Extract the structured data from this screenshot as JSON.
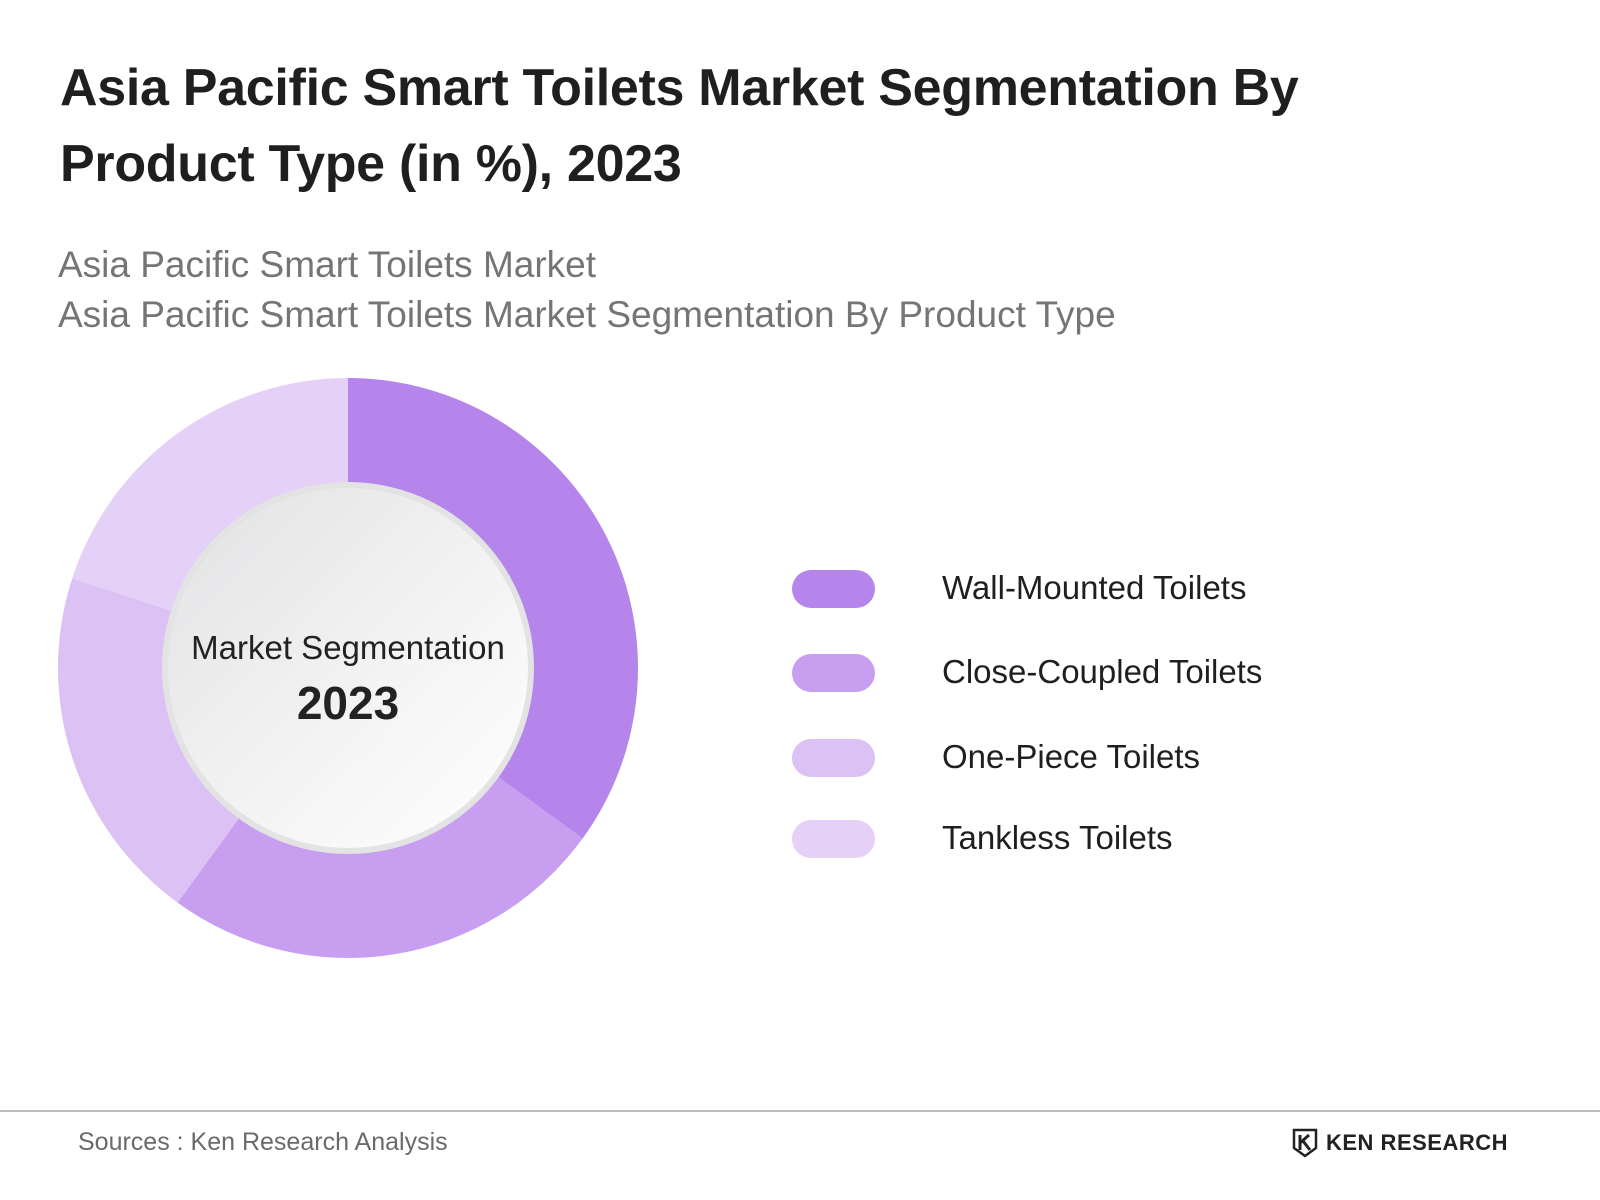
{
  "header": {
    "title": "Asia Pacific Smart Toilets Market Segmentation By Product Type (in %), 2023",
    "subtitle_1": "Asia Pacific Smart Toilets Market",
    "subtitle_2": "Asia Pacific Smart Toilets Market Segmentation By Product Type"
  },
  "center": {
    "label": "Market Segmentation",
    "year": "2023"
  },
  "chart_data": {
    "type": "pie",
    "variant": "donut",
    "categories": [
      "Wall-Mounted Toilets",
      "Close-Coupled Toilets",
      "One-Piece Toilets",
      "Tankless Toilets"
    ],
    "values": [
      35,
      25,
      20,
      20
    ],
    "colors": [
      "#b585ec",
      "#c89ff0",
      "#dcc1f5",
      "#e5d1f7"
    ],
    "legend": "right"
  },
  "footer": {
    "source": "Sources : Ken Research Analysis",
    "logo_text": "KEN RESEARCH"
  }
}
